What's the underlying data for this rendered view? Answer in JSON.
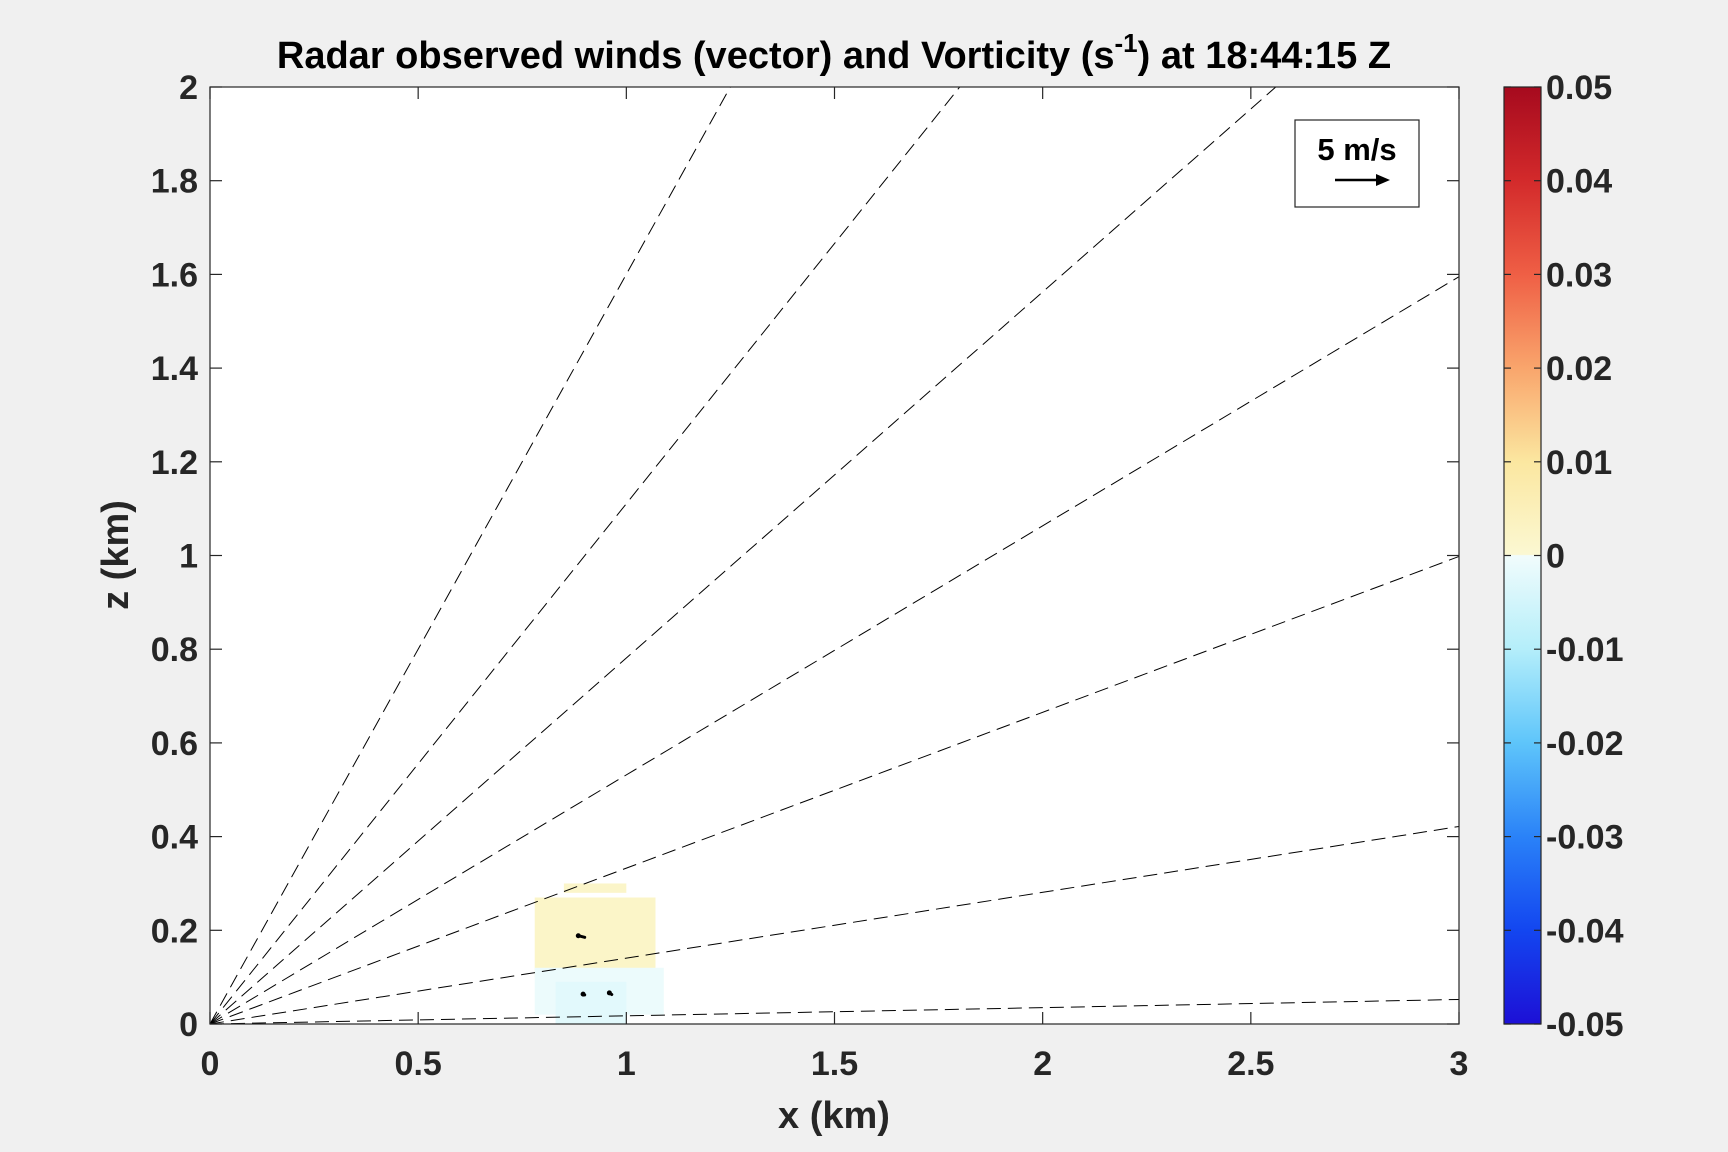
{
  "chart_data": {
    "type": "heatmap",
    "title": {
      "prefix": "Radar observed winds (vector) and Vorticity (s",
      "superscript": "-1",
      "suffix": ") at 18:44:15 Z"
    },
    "xlabel": "x (km)",
    "ylabel": "z (km)",
    "xlim": [
      0,
      3
    ],
    "ylim": [
      0,
      2
    ],
    "x_ticks": [
      0,
      0.5,
      1,
      1.5,
      2,
      2.5,
      3
    ],
    "x_tick_labels": [
      "0",
      "0.5",
      "1",
      "1.5",
      "2",
      "2.5",
      "3"
    ],
    "y_ticks": [
      0,
      0.2,
      0.4,
      0.6,
      0.8,
      1,
      1.2,
      1.4,
      1.6,
      1.8,
      2
    ],
    "y_tick_labels": [
      "0",
      "0.2",
      "0.4",
      "0.6",
      "0.8",
      "1",
      "1.2",
      "1.4",
      "1.6",
      "1.8",
      "2"
    ],
    "colorbar": {
      "clim": [
        -0.05,
        0.05
      ],
      "ticks": [
        0.05,
        0.04,
        0.03,
        0.02,
        0.01,
        0,
        -0.01,
        -0.02,
        -0.03,
        -0.04,
        -0.05
      ],
      "tick_labels": [
        "0.05",
        "0.04",
        "0.03",
        "0.02",
        "0.01",
        "0",
        "-0.01",
        "-0.02",
        "-0.03",
        "-0.04",
        "-0.05"
      ],
      "colormap": [
        {
          "v": -0.05,
          "color": "#1d10d6"
        },
        {
          "v": -0.04,
          "color": "#1346f0"
        },
        {
          "v": -0.03,
          "color": "#2a82f8"
        },
        {
          "v": -0.02,
          "color": "#5ec5fa"
        },
        {
          "v": -0.01,
          "color": "#b4eefa"
        },
        {
          "v": 0.0,
          "color": "#f1fcfc"
        },
        {
          "v": 0.0001,
          "color": "#fbf8d2"
        },
        {
          "v": 0.01,
          "color": "#fbe7a0"
        },
        {
          "v": 0.02,
          "color": "#f9a56c"
        },
        {
          "v": 0.03,
          "color": "#ef5f45"
        },
        {
          "v": 0.04,
          "color": "#d32a2b"
        },
        {
          "v": 0.05,
          "color": "#a60a1e"
        }
      ]
    },
    "vorticity_cells": [
      {
        "x": [
          0.85,
          1.0
        ],
        "z": [
          0.28,
          0.3
        ],
        "value": 0.0018
      },
      {
        "x": [
          0.78,
          1.07
        ],
        "z": [
          0.1,
          0.27
        ],
        "value": 0.002
      },
      {
        "x": [
          0.78,
          1.09
        ],
        "z": [
          0.02,
          0.12
        ],
        "value": -0.0008
      },
      {
        "x": [
          0.83,
          1.0
        ],
        "z": [
          0.0,
          0.09
        ],
        "value": -0.0025
      }
    ],
    "radar_beams": {
      "origin": [
        0,
        0
      ],
      "elevation_deg": [
        1.0,
        8.0,
        18.4,
        28.0,
        38.0,
        48.0,
        58.0
      ]
    },
    "wind_vectors": [
      {
        "x": 0.9,
        "z": 0.185,
        "u": -0.8,
        "w": 0.2
      },
      {
        "x": 0.9,
        "z": 0.062,
        "u": -0.2,
        "w": 0.1
      },
      {
        "x": 0.965,
        "z": 0.063,
        "u": -0.3,
        "w": 0.2
      }
    ],
    "reference_vector": {
      "label": "5 m/s",
      "magnitude": 5,
      "units": "m/s"
    },
    "legend_position": "top-right",
    "grid": false
  }
}
